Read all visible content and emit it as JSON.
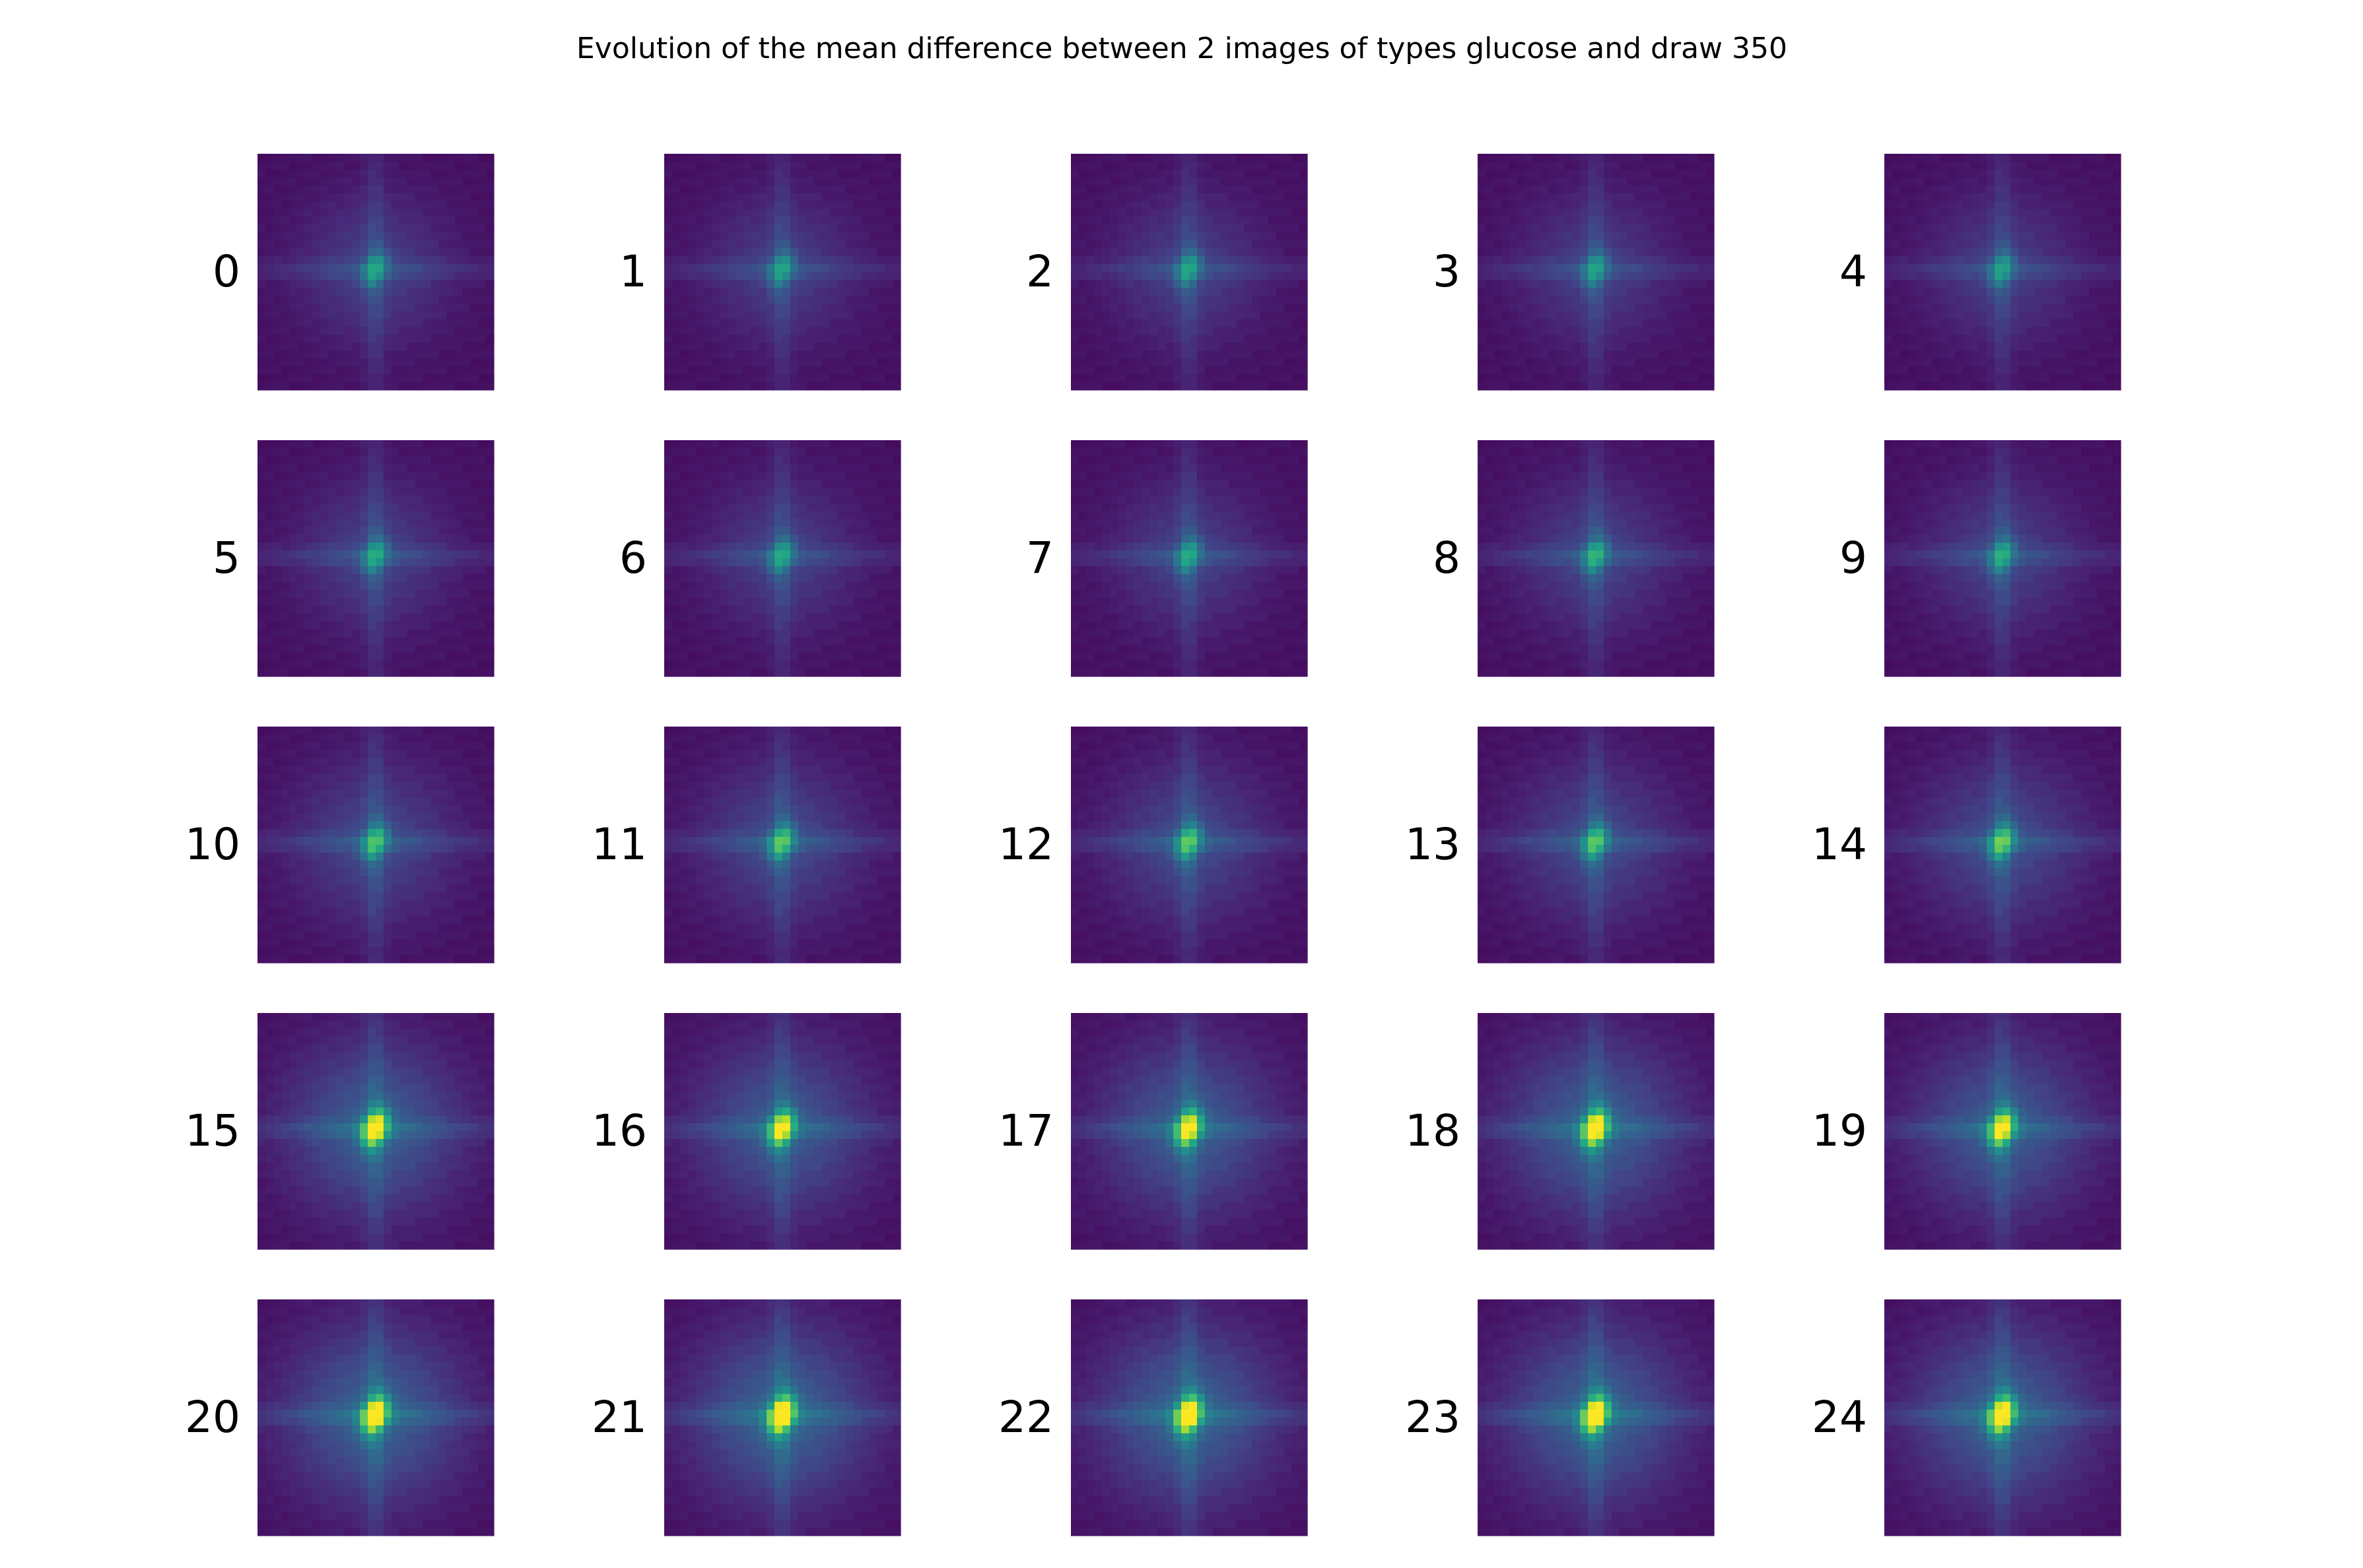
{
  "chart_data": {
    "type": "heatmap",
    "title": "Evolution of the mean difference between 2 images of types glucose and draw 350",
    "colormap": "viridis",
    "grid": false,
    "layout": "5x5 grid of heatmap thumbnails, each labeled by its index on the left",
    "panels": [
      {
        "label": "0",
        "peak": 0.42,
        "spread": 1.0,
        "cross": 0.16
      },
      {
        "label": "1",
        "peak": 0.4,
        "spread": 1.0,
        "cross": 0.16
      },
      {
        "label": "2",
        "peak": 0.41,
        "spread": 1.0,
        "cross": 0.16
      },
      {
        "label": "3",
        "peak": 0.4,
        "spread": 1.0,
        "cross": 0.16
      },
      {
        "label": "4",
        "peak": 0.39,
        "spread": 1.0,
        "cross": 0.16
      },
      {
        "label": "5",
        "peak": 0.43,
        "spread": 1.0,
        "cross": 0.17
      },
      {
        "label": "6",
        "peak": 0.42,
        "spread": 1.0,
        "cross": 0.17
      },
      {
        "label": "7",
        "peak": 0.42,
        "spread": 1.0,
        "cross": 0.17
      },
      {
        "label": "8",
        "peak": 0.46,
        "spread": 1.02,
        "cross": 0.17
      },
      {
        "label": "9",
        "peak": 0.44,
        "spread": 1.02,
        "cross": 0.17
      },
      {
        "label": "10",
        "peak": 0.52,
        "spread": 1.08,
        "cross": 0.18
      },
      {
        "label": "11",
        "peak": 0.55,
        "spread": 1.08,
        "cross": 0.18
      },
      {
        "label": "12",
        "peak": 0.55,
        "spread": 1.08,
        "cross": 0.18
      },
      {
        "label": "13",
        "peak": 0.54,
        "spread": 1.08,
        "cross": 0.18
      },
      {
        "label": "14",
        "peak": 0.58,
        "spread": 1.1,
        "cross": 0.18
      },
      {
        "label": "15",
        "peak": 0.9,
        "spread": 1.15,
        "cross": 0.19
      },
      {
        "label": "16",
        "peak": 0.82,
        "spread": 1.15,
        "cross": 0.19
      },
      {
        "label": "17",
        "peak": 0.85,
        "spread": 1.15,
        "cross": 0.19
      },
      {
        "label": "18",
        "peak": 0.92,
        "spread": 1.18,
        "cross": 0.19
      },
      {
        "label": "19",
        "peak": 0.84,
        "spread": 1.15,
        "cross": 0.19
      },
      {
        "label": "20",
        "peak": 0.95,
        "spread": 1.18,
        "cross": 0.2
      },
      {
        "label": "21",
        "peak": 1.0,
        "spread": 1.18,
        "cross": 0.2
      },
      {
        "label": "22",
        "peak": 0.97,
        "spread": 1.18,
        "cross": 0.2
      },
      {
        "label": "23",
        "peak": 0.96,
        "spread": 1.18,
        "cross": 0.2
      },
      {
        "label": "24",
        "peak": 0.93,
        "spread": 1.18,
        "cross": 0.2
      }
    ]
  }
}
